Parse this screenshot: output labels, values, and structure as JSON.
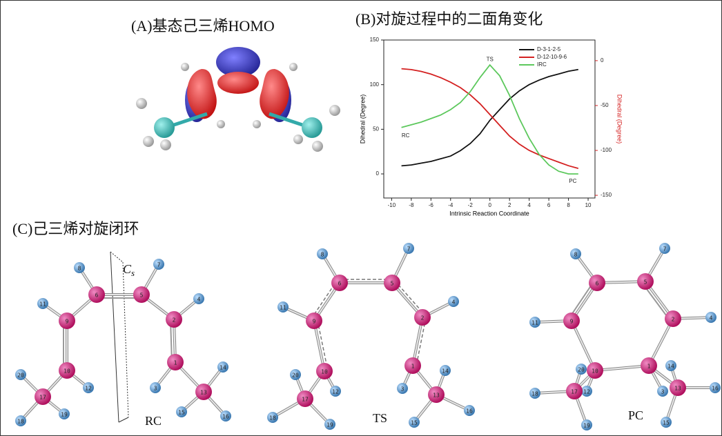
{
  "panels": {
    "a": {
      "title": "(A)基态己三烯HOMO"
    },
    "c": {
      "title": "(C)己三烯对旋闭环",
      "symmetry": {
        "main": "C",
        "sub": "s"
      },
      "molecules": [
        {
          "caption": "RC",
          "atoms": [
            "1",
            "2",
            "3",
            "4",
            "5",
            "6",
            "7",
            "8",
            "9",
            "10",
            "11",
            "12",
            "13",
            "14",
            "15",
            "16",
            "17",
            "18",
            "19",
            "20"
          ]
        },
        {
          "caption": "TS",
          "atoms": [
            "1",
            "2",
            "3",
            "4",
            "5",
            "6",
            "7",
            "8",
            "9",
            "10",
            "11",
            "12",
            "13",
            "14",
            "15",
            "16",
            "17",
            "18",
            "19",
            "20"
          ]
        },
        {
          "caption": "PC",
          "atoms": [
            "1",
            "2",
            "3",
            "4",
            "5",
            "6",
            "7",
            "8",
            "9",
            "10",
            "11",
            "12",
            "13",
            "14",
            "15",
            "16",
            "17",
            "18",
            "19",
            "20"
          ]
        }
      ]
    }
  },
  "chart_data": {
    "type": "line",
    "title": "(B)对旋过程中的二面角变化",
    "x_label": "Intrinsic Reaction Coordinate",
    "y_label": "Dihedral (Degree)",
    "y2_label": "Dihedral (Degree)",
    "x": [
      -9,
      -8,
      -7,
      -6,
      -5,
      -4,
      -3,
      -2,
      -1,
      0,
      1,
      2,
      3,
      4,
      5,
      6,
      7,
      8,
      9
    ],
    "xlim": [
      -10.8,
      10.7
    ],
    "xticks": [
      -10,
      -8,
      -6,
      -4,
      -2,
      0,
      2,
      4,
      6,
      8,
      10
    ],
    "ylim": [
      -27,
      150
    ],
    "yticks": [
      0,
      50,
      100,
      150
    ],
    "y2lim": [
      -153,
      23
    ],
    "y2ticks": [
      0,
      -50,
      -100,
      -150
    ],
    "y2color": "#d42020",
    "legend": "upper right",
    "series": [
      {
        "name": "D-3-1-2-5",
        "color": "#111111",
        "values": [
          9,
          10,
          12,
          14,
          17,
          20,
          26,
          34,
          45,
          60,
          72,
          84,
          93,
          100,
          105,
          109,
          112,
          115,
          117
        ]
      },
      {
        "name": "D-12-10-9-6",
        "color": "#d42020",
        "axis": "y2",
        "values": [
          -9,
          -10,
          -12,
          -15,
          -19,
          -24,
          -30,
          -38,
          -48,
          -60,
          -72,
          -84,
          -93,
          -100,
          -105,
          -109,
          -113,
          -117,
          -120
        ]
      },
      {
        "name": "IRC",
        "color": "#5cc85c",
        "values": [
          52,
          55,
          58,
          62,
          66,
          72,
          80,
          92,
          108,
          122,
          110,
          88,
          62,
          40,
          22,
          10,
          3,
          0,
          0
        ]
      }
    ],
    "annotations": [
      "TS",
      "RC",
      "PC"
    ]
  }
}
